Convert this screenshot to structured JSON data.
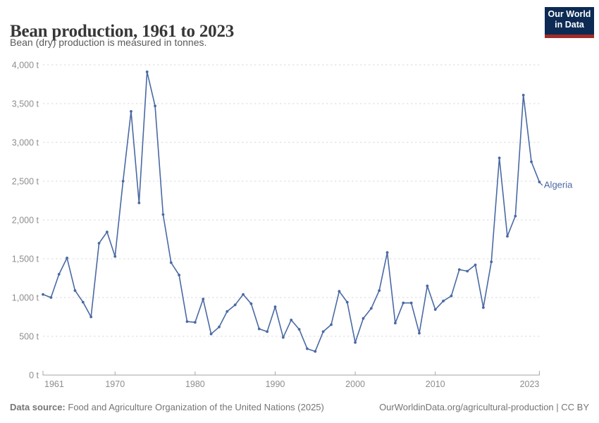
{
  "header": {
    "title": "Bean production, 1961 to 2023",
    "subtitle": "Bean (dry) production is measured in tonnes.",
    "logo_line1": "Our World",
    "logo_line2": "in Data"
  },
  "chart_data": {
    "type": "line",
    "title": "Bean production, 1961 to 2023",
    "unit": "tonnes",
    "grid": "horizontal dashed",
    "legend_position": "end-of-line label",
    "xlabel": "",
    "ylabel": "",
    "ylim": [
      0,
      4000
    ],
    "y_ticks": [
      0,
      500,
      1000,
      1500,
      2000,
      2500,
      3000,
      3500,
      4000
    ],
    "y_tick_labels": [
      "0 t",
      "500 t",
      "1,000 t",
      "1,500 t",
      "2,000 t",
      "2,500 t",
      "3,000 t",
      "3,500 t",
      "4,000 t"
    ],
    "x_ticks": [
      1961,
      1970,
      1980,
      1990,
      2000,
      2010,
      2023
    ],
    "x": [
      1961,
      1962,
      1963,
      1964,
      1965,
      1966,
      1967,
      1968,
      1969,
      1970,
      1971,
      1972,
      1973,
      1974,
      1975,
      1976,
      1977,
      1978,
      1979,
      1980,
      1981,
      1982,
      1983,
      1984,
      1985,
      1986,
      1987,
      1988,
      1989,
      1990,
      1991,
      1992,
      1993,
      1994,
      1995,
      1996,
      1997,
      1998,
      1999,
      2000,
      2001,
      2002,
      2003,
      2004,
      2005,
      2006,
      2007,
      2008,
      2009,
      2010,
      2011,
      2012,
      2013,
      2014,
      2015,
      2016,
      2017,
      2018,
      2019,
      2020,
      2021,
      2022,
      2023
    ],
    "series": [
      {
        "name": "Algeria",
        "color": "#4a69a3",
        "values": [
          1040,
          1000,
          1300,
          1510,
          1090,
          940,
          750,
          1700,
          1845,
          1530,
          2500,
          3400,
          2220,
          3910,
          3470,
          2070,
          1450,
          1290,
          690,
          680,
          980,
          530,
          620,
          820,
          905,
          1040,
          920,
          595,
          560,
          880,
          485,
          710,
          590,
          340,
          305,
          560,
          650,
          1080,
          940,
          420,
          730,
          860,
          1090,
          1580,
          670,
          930,
          930,
          540,
          1150,
          845,
          955,
          1020,
          1360,
          1340,
          1420,
          870,
          1460,
          2800,
          1790,
          2050,
          3610,
          2750,
          2490
        ]
      }
    ]
  },
  "footer": {
    "source_label": "Data source:",
    "source_text": "Food and Agriculture Organization of the United Nations (2025)",
    "right_text": "OurWorldinData.org/agricultural-production | CC BY"
  },
  "colors": {
    "line": "#4a69a3",
    "title_text": "#373737",
    "subtitle_text": "#5a5a5a",
    "tick_text": "#8e8e8e",
    "gridline": "#dadada",
    "axis": "#a6a6a6",
    "footer_text": "#757575",
    "logo_bg": "#0c2a54",
    "logo_red": "#a32c27"
  }
}
